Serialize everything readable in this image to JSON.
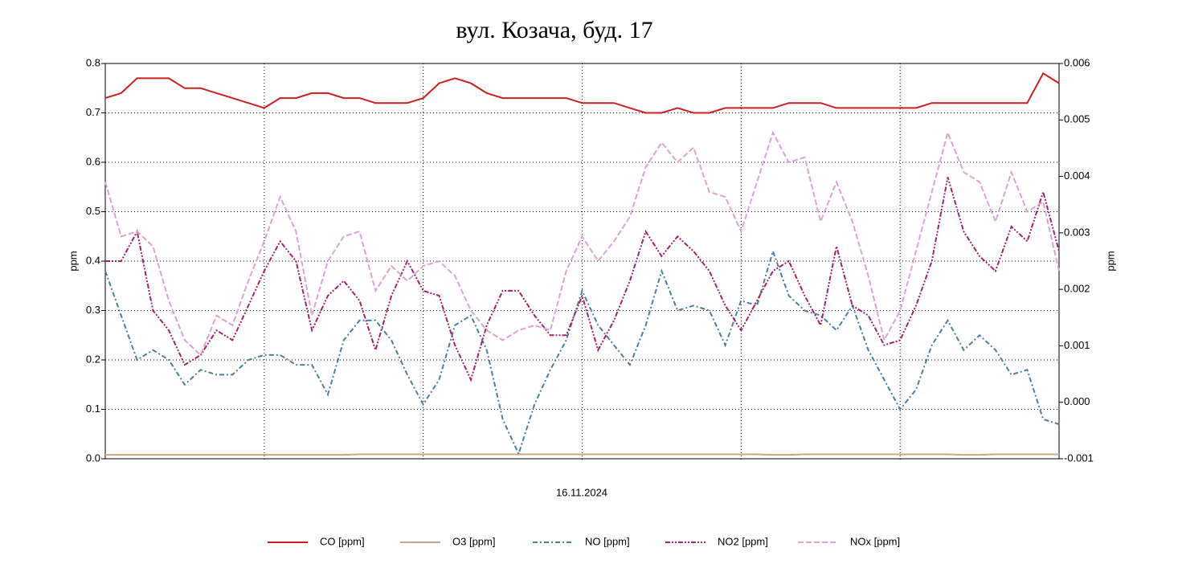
{
  "chart_data": {
    "type": "line",
    "title": "вул. Козача, буд. 17",
    "ylabel": "ppm",
    "y2label": "ppm",
    "xlabel": "16.11.2024",
    "categories": [
      null,
      null,
      null,
      null,
      null,
      null,
      null,
      null,
      null,
      null,
      null,
      null,
      null,
      null,
      null,
      null,
      null,
      null,
      null,
      null,
      null,
      null,
      null,
      null,
      null,
      null,
      null,
      null,
      null,
      null,
      null,
      null,
      null,
      null,
      null,
      null,
      null,
      null,
      null,
      null,
      null,
      null,
      null,
      null,
      null,
      null,
      null,
      null,
      null,
      null,
      null,
      null,
      null,
      null,
      null,
      null,
      null,
      null,
      null,
      null,
      null
    ],
    "ylim": [
      0,
      0.8
    ],
    "yticks": [
      {
        "value": 0,
        "label": "0.0"
      },
      0.1,
      0.2,
      0.3,
      0.4,
      0.5,
      0.6,
      0.7,
      0.8
    ],
    "y2lim": [
      -0.001,
      0.006
    ],
    "y2ticks": [
      -0.001,
      {
        "value": 0,
        "label": "0.000"
      },
      0.001,
      0.002,
      0.003,
      0.004,
      0.005,
      0.006
    ],
    "grid": true,
    "legend": "bottom",
    "series": [
      {
        "name": "CO [ppm]",
        "color": "#cc1f1f",
        "dash": "none",
        "values": [
          0.73,
          0.74,
          0.77,
          0.77,
          0.77,
          0.75,
          0.75,
          0.74,
          0.73,
          0.72,
          0.71,
          0.73,
          0.73,
          0.74,
          0.74,
          0.73,
          0.73,
          0.72,
          0.72,
          0.72,
          0.73,
          0.76,
          0.77,
          0.76,
          0.74,
          0.73,
          0.73,
          0.73,
          0.73,
          0.73,
          0.72,
          0.72,
          0.72,
          0.71,
          0.7,
          0.7,
          0.71,
          0.7,
          0.7,
          0.71,
          0.71,
          0.71,
          0.71,
          0.72,
          0.72,
          0.72,
          0.71,
          0.71,
          0.71,
          0.71,
          0.71,
          0.71,
          0.72,
          0.72,
          0.72,
          0.72,
          0.72,
          0.72,
          0.72,
          0.78,
          0.76
        ]
      },
      {
        "name": "O3 [ppm]",
        "color": "#c8a882",
        "dash": "none",
        "values": [
          0.008,
          0.008,
          0.008,
          0.008,
          0.008,
          0.008,
          0.008,
          0.008,
          0.008,
          0.008,
          0.008,
          0.008,
          0.008,
          0.008,
          0.008,
          0.008,
          0.009,
          0.009,
          0.009,
          0.009,
          0.009,
          0.009,
          0.009,
          0.009,
          0.009,
          0.009,
          0.009,
          0.009,
          0.009,
          0.009,
          0.009,
          0.009,
          0.009,
          0.009,
          0.009,
          0.009,
          0.009,
          0.009,
          0.009,
          0.009,
          0.009,
          0.009,
          0.008,
          0.008,
          0.009,
          0.009,
          0.009,
          0.009,
          0.009,
          0.009,
          0.009,
          0.009,
          0.009,
          0.009,
          0.008,
          0.008,
          0.009,
          0.009,
          0.009,
          0.009,
          0.009
        ]
      },
      {
        "name": "NO [ppm]",
        "color": "#4a7f9c",
        "dash": "6 3 2 3",
        "values": [
          0.38,
          0.29,
          0.2,
          0.22,
          0.2,
          0.15,
          0.18,
          0.17,
          0.17,
          0.2,
          0.21,
          0.21,
          0.19,
          0.19,
          0.13,
          0.24,
          0.28,
          0.28,
          0.24,
          0.17,
          0.11,
          0.16,
          0.27,
          0.29,
          0.22,
          0.08,
          0.01,
          0.11,
          0.18,
          0.24,
          0.34,
          0.27,
          0.23,
          0.19,
          0.27,
          0.38,
          0.3,
          0.31,
          0.3,
          0.23,
          0.32,
          0.31,
          0.42,
          0.33,
          0.3,
          0.29,
          0.26,
          0.31,
          0.22,
          0.16,
          0.1,
          0.14,
          0.23,
          0.28,
          0.22,
          0.25,
          0.22,
          0.17,
          0.18,
          0.08,
          0.07
        ]
      },
      {
        "name": "NO2 [ppm]",
        "color": "#a5206f",
        "dash": "6 2 2 2 2 2",
        "values": [
          0.4,
          0.4,
          0.46,
          0.3,
          0.26,
          0.19,
          0.21,
          0.26,
          0.24,
          0.31,
          0.38,
          0.44,
          0.4,
          0.26,
          0.33,
          0.36,
          0.32,
          0.22,
          0.33,
          0.4,
          0.34,
          0.33,
          0.23,
          0.16,
          0.27,
          0.34,
          0.34,
          0.29,
          0.25,
          0.25,
          0.33,
          0.22,
          0.28,
          0.36,
          0.46,
          0.41,
          0.45,
          0.42,
          0.38,
          0.31,
          0.26,
          0.32,
          0.38,
          0.4,
          0.33,
          0.27,
          0.43,
          0.31,
          0.29,
          0.23,
          0.24,
          0.31,
          0.4,
          0.57,
          0.46,
          0.41,
          0.38,
          0.47,
          0.44,
          0.54,
          0.42
        ]
      },
      {
        "name": "NOx [ppm]",
        "color": "#dca2d4",
        "dash": "7 3",
        "values": [
          0.56,
          0.45,
          0.46,
          0.43,
          0.32,
          0.24,
          0.21,
          0.29,
          0.27,
          0.36,
          0.44,
          0.53,
          0.46,
          0.29,
          0.4,
          0.45,
          0.46,
          0.34,
          0.39,
          0.36,
          0.39,
          0.4,
          0.37,
          0.3,
          0.26,
          0.24,
          0.26,
          0.27,
          0.26,
          0.38,
          0.45,
          0.4,
          0.44,
          0.49,
          0.59,
          0.64,
          0.6,
          0.63,
          0.54,
          0.53,
          0.46,
          0.56,
          0.66,
          0.6,
          0.61,
          0.48,
          0.56,
          0.48,
          0.37,
          0.24,
          0.3,
          0.42,
          0.54,
          0.66,
          0.58,
          0.56,
          0.48,
          0.58,
          0.5,
          0.52,
          0.38
        ]
      }
    ]
  }
}
